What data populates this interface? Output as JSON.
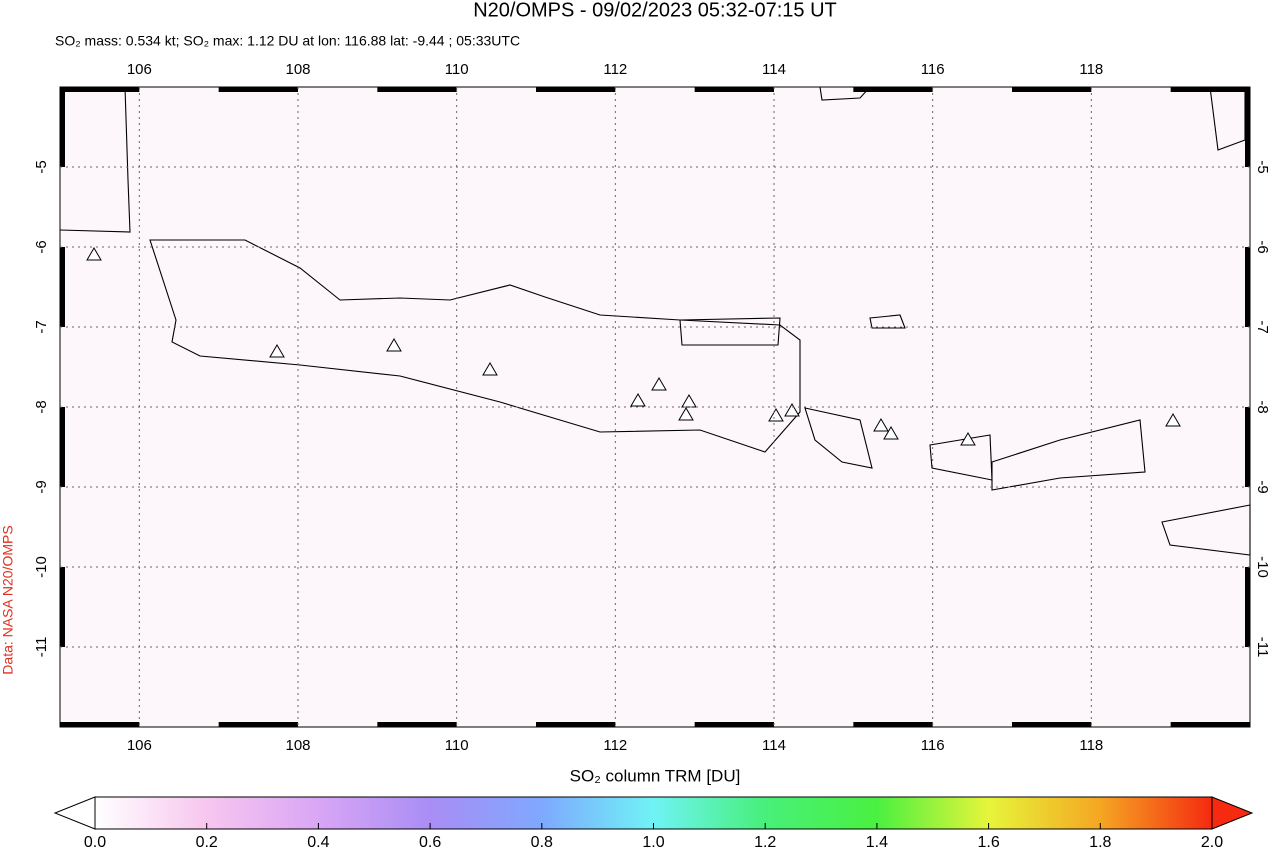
{
  "header": {
    "title": "N20/OMPS - 09/02/2023 05:32-07:15 UT",
    "subtitle": "SO₂ mass: 0.534 kt; SO₂ max: 1.12 DU at lon: 116.88 lat: -9.44 ; 05:33UTC",
    "credit": "Data: NASA N20/OMPS"
  },
  "map": {
    "xlim": [
      105,
      120
    ],
    "ylim": [
      -12,
      -4
    ],
    "xticks": [
      106,
      108,
      110,
      112,
      114,
      116,
      118
    ],
    "yticks": [
      -5,
      -6,
      -7,
      -8,
      -9,
      -10,
      -11
    ]
  },
  "colorbar": {
    "label": "SO₂ column TRM [DU]",
    "lim": [
      0,
      2
    ],
    "colors": [
      "#ffffff",
      "#f7c6ef",
      "#d9a6f5",
      "#a98df5",
      "#7fa8ff",
      "#6ff3f5",
      "#47f07a",
      "#4af040",
      "#e6f53a",
      "#f5a623",
      "#f52a10"
    ],
    "ticks": [
      {
        "value": 0,
        "label": "0.0"
      },
      {
        "value": 0.2,
        "label": "0.2"
      },
      {
        "value": 0.4,
        "label": "0.4"
      },
      {
        "value": 0.6,
        "label": "0.6"
      },
      {
        "value": 0.8,
        "label": "0.8"
      },
      {
        "value": 1,
        "label": "1.0"
      },
      {
        "value": 1.2,
        "label": "1.2"
      },
      {
        "value": 1.4,
        "label": "1.4"
      },
      {
        "value": 1.6,
        "label": "1.6"
      },
      {
        "value": 1.8,
        "label": "1.8"
      },
      {
        "value": 2,
        "label": "2.0"
      }
    ]
  }
}
